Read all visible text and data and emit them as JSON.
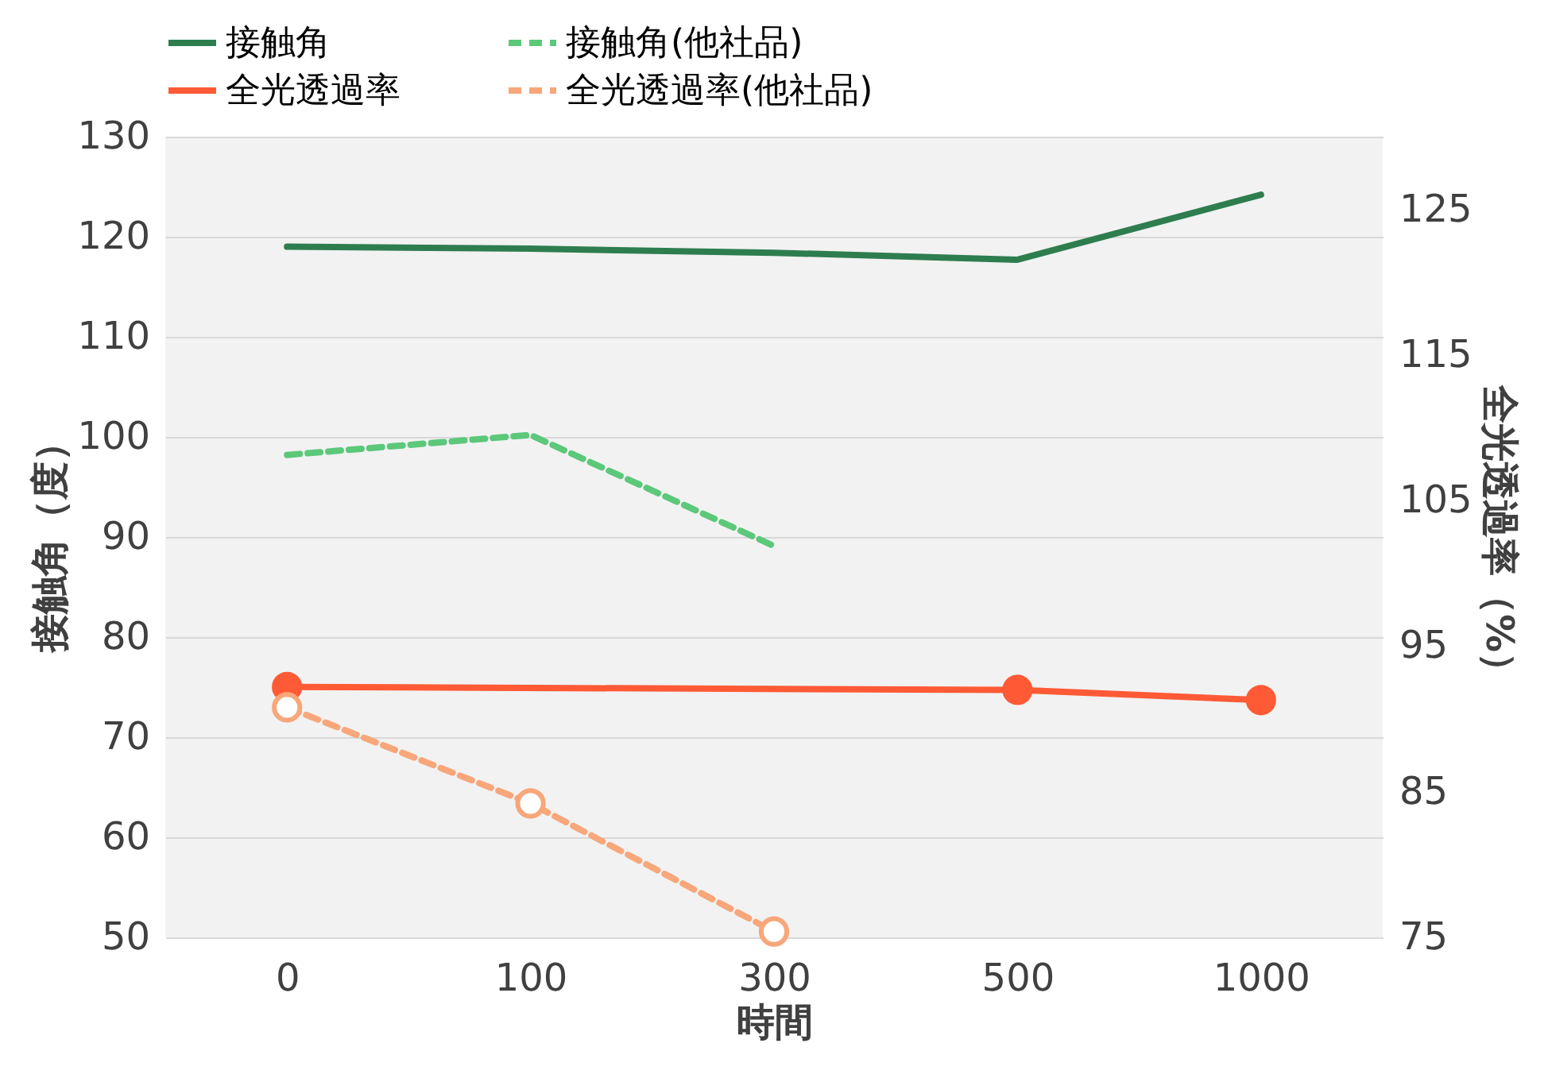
{
  "chart_data": {
    "type": "line",
    "xlabel": "時間",
    "ylabel": "接触角（度）",
    "y2label": "全光透過率（%）",
    "categories": [
      "0",
      "100",
      "300",
      "500",
      "1000"
    ],
    "ylim": [
      50,
      130
    ],
    "yticks": [
      50,
      60,
      70,
      80,
      90,
      100,
      110,
      120,
      130
    ],
    "y2lim": [
      75,
      130
    ],
    "y2ticks": [
      75,
      85,
      95,
      105,
      115,
      125
    ],
    "grid": "y",
    "legend": "top",
    "series": [
      {
        "name": "接触角",
        "color": "#2e7d4f",
        "values": [
          119.0,
          118.8,
          118.4,
          117.7,
          124.2
        ],
        "line_style": "solid",
        "marker": "none"
      },
      {
        "name": "接触角(他社品)",
        "color": "#5cc87a",
        "values": [
          98.2,
          100.2,
          89.1,
          null,
          null
        ],
        "line_style": "dashed",
        "marker": "none"
      },
      {
        "name": "全光透過率",
        "color": "#ff5a36",
        "values": [
          92.2,
          null,
          null,
          92.0,
          91.3
        ],
        "axis": "y2",
        "line_style": "solid",
        "marker": "circle"
      },
      {
        "name": "全光透過率(他社品)",
        "color": "#f8a77a",
        "values": [
          90.8,
          84.2,
          75.4,
          null,
          null
        ],
        "axis": "y2",
        "line_style": "dashed",
        "marker": "circle"
      }
    ]
  }
}
